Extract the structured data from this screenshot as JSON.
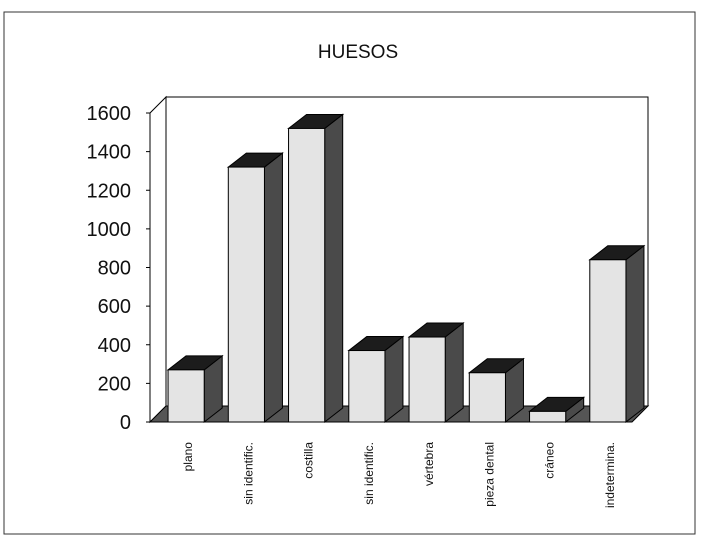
{
  "chart_data": {
    "type": "bar",
    "title": "HUESOS",
    "xlabel": "",
    "ylabel": "",
    "categories": [
      "plano",
      "sin identific.",
      "costilla",
      "sin identific.",
      "vértebra",
      "pieza dental",
      "cráneo",
      "indetermina."
    ],
    "values": [
      270,
      1320,
      1520,
      370,
      440,
      255,
      55,
      840
    ],
    "ylim": [
      0,
      1600
    ],
    "yticks": [
      0,
      200,
      400,
      600,
      800,
      1000,
      1200,
      1400,
      1600
    ],
    "grid": false,
    "legend": "none",
    "projection": "3d-columns",
    "colors": {
      "bar_face": "#e4e4e4",
      "bar_side": "#4a4a4a",
      "bar_top": "#1c1c1c",
      "floor": "#555555",
      "frame": "#000000"
    }
  }
}
